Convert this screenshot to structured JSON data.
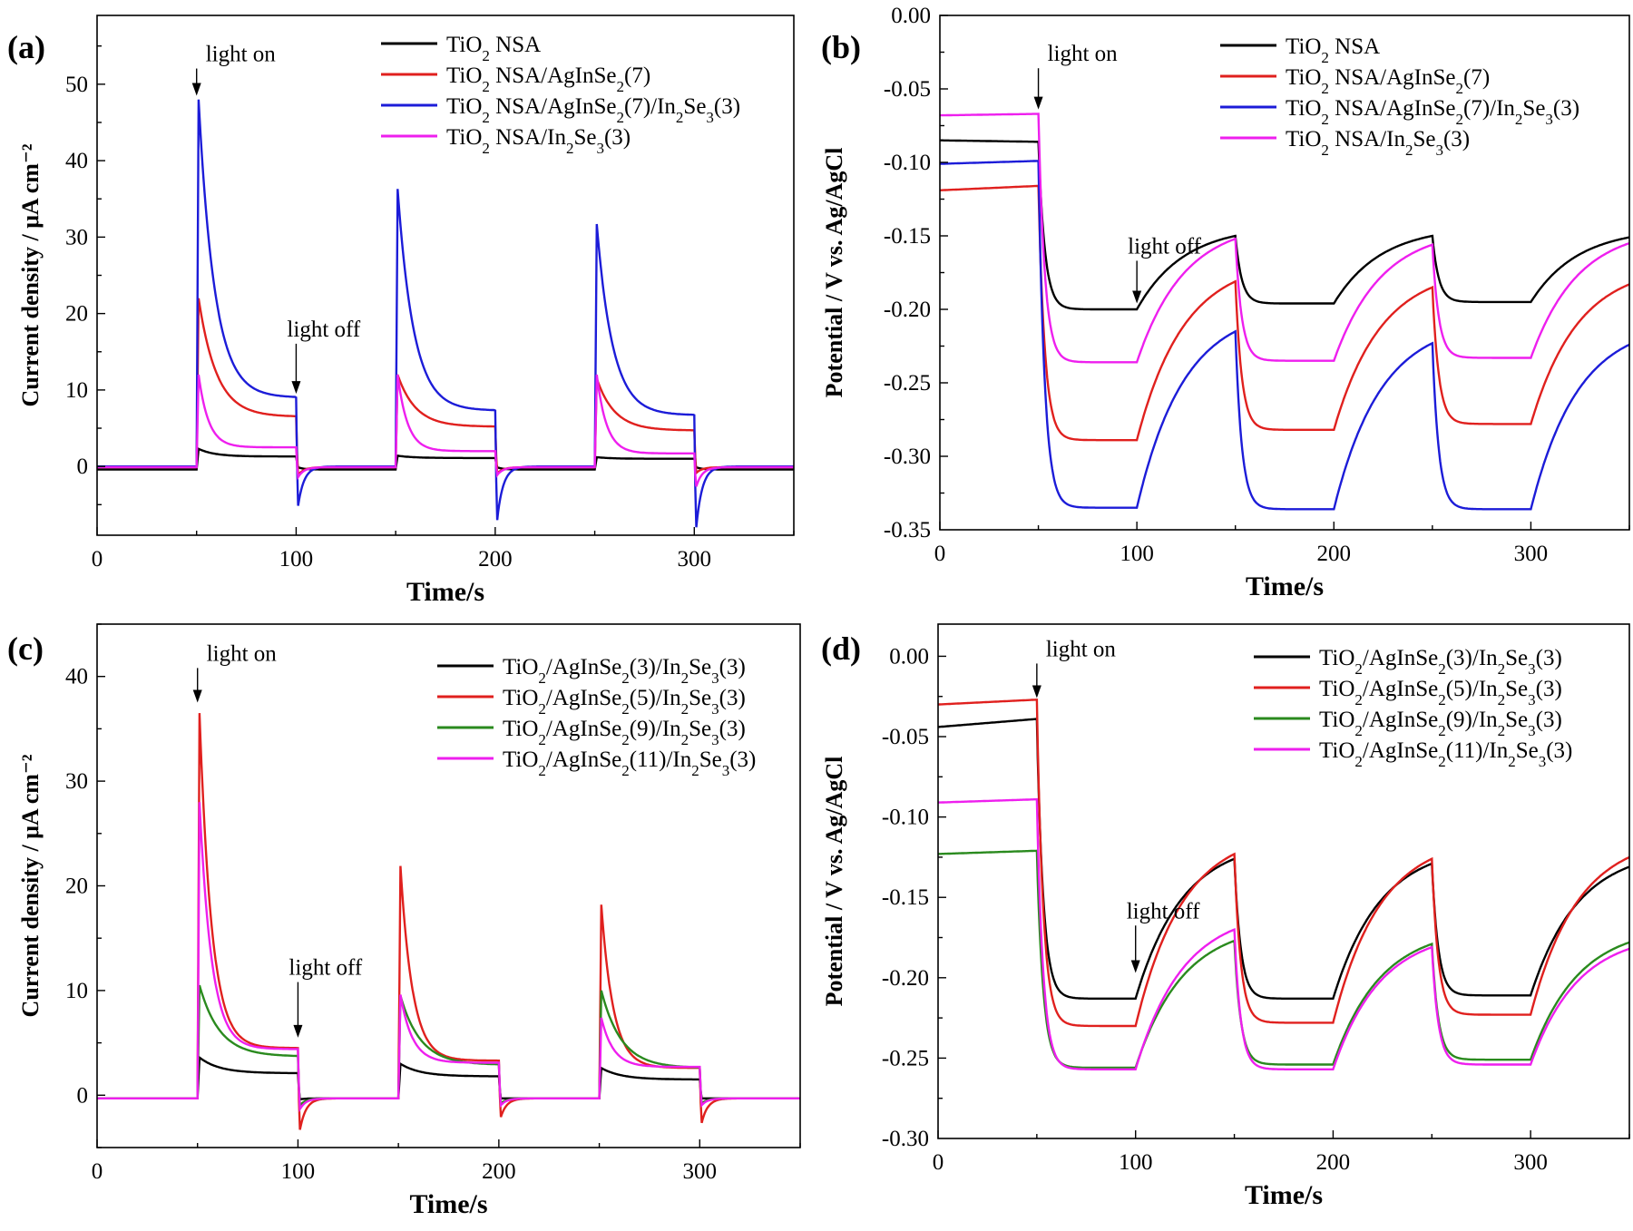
{
  "figure": {
    "panels": [
      {
        "id": "a",
        "label": "(a)"
      },
      {
        "id": "b",
        "label": "(b)"
      },
      {
        "id": "c",
        "label": "(c)"
      },
      {
        "id": "d",
        "label": "(d)"
      }
    ]
  },
  "chart_data": [
    {
      "panel": "(a)",
      "type": "line",
      "xlabel": "Time/s",
      "ylabel": "Current density / μA cm⁻²",
      "xlim": [
        0,
        350
      ],
      "ylim": [
        -9,
        59
      ],
      "xticks": [
        0,
        100,
        200,
        300
      ],
      "yticks": [
        0,
        10,
        20,
        30,
        40,
        50
      ],
      "tick_format": 0,
      "legend": "top-right",
      "annotations": [
        {
          "text": "light on",
          "x": 50,
          "y_tip": 48.5,
          "y_text": 53
        },
        {
          "text": "light off",
          "x": 100,
          "y_tip": 9.5,
          "y_text": 17
        }
      ],
      "cycles": [
        [
          50,
          100
        ],
        [
          150,
          200
        ],
        [
          250,
          300
        ]
      ],
      "series": [
        {
          "name": "TiO2 NSA",
          "color": "#000000",
          "dark": -0.4,
          "peaks": [
            2.3,
            1.4,
            1.2
          ],
          "plateau": [
            1.3,
            1.1,
            1.0
          ],
          "tau": 8,
          "undershoot": [
            -0.1,
            -0.1,
            -0.1
          ]
        },
        {
          "name": "TiO2 NSA/AgInSe2(7)",
          "color": "#e0201e",
          "dark": -0.1,
          "peaks": [
            22,
            12,
            11.5
          ],
          "plateau": [
            6.5,
            5.2,
            4.7
          ],
          "tau": 9,
          "undershoot": [
            -1.2,
            -1.0,
            -0.9
          ]
        },
        {
          "name": "TiO2 NSA/AgInSe2(7)/In2Se3(3)",
          "color": "#1c1cd8",
          "dark": 0.0,
          "peaks": [
            48,
            36.3,
            31.7
          ],
          "plateau": [
            9.0,
            7.3,
            6.7
          ],
          "tau": 8,
          "undershoot": [
            -5.5,
            -7.5,
            -8.5
          ]
        },
        {
          "name": "TiO2 NSA/In2Se3(3)",
          "color": "#ee1fee",
          "dark": -0.1,
          "peaks": [
            12,
            12,
            12
          ],
          "plateau": [
            2.5,
            2.0,
            1.7
          ],
          "tau": 5,
          "undershoot": [
            -1.5,
            -1.2,
            -2.8
          ]
        }
      ]
    },
    {
      "panel": "(b)",
      "type": "line",
      "xlabel": "Time/s",
      "ylabel": "Potential / V vs. Ag/AgCl",
      "xlim": [
        0,
        350
      ],
      "ylim": [
        -0.35,
        0.0
      ],
      "xticks": [
        0,
        100,
        200,
        300
      ],
      "yticks": [
        0.0,
        -0.05,
        -0.1,
        -0.15,
        -0.2,
        -0.25,
        -0.3,
        -0.35
      ],
      "tick_format": 2,
      "legend": "top-right",
      "annotations": [
        {
          "text": "light on",
          "x": 50,
          "y_tip": -0.064,
          "y_text": -0.031
        },
        {
          "text": "light off",
          "x": 100,
          "y_tip": -0.196,
          "y_text": -0.162
        }
      ],
      "cycles": [
        [
          50,
          100
        ],
        [
          150,
          200
        ],
        [
          250,
          300
        ]
      ],
      "series": [
        {
          "name": "TiO2 NSA",
          "color": "#000000",
          "v0": [
            -0.085,
            -0.086
          ],
          "light": [
            -0.2,
            -0.196,
            -0.195
          ],
          "off_end": [
            -0.15,
            -0.15,
            -0.151
          ]
        },
        {
          "name": "TiO2 NSA/AgInSe2(7)",
          "color": "#e0201e",
          "v0": [
            -0.119,
            -0.116
          ],
          "light": [
            -0.289,
            -0.282,
            -0.278
          ],
          "off_end": [
            -0.181,
            -0.185,
            -0.183
          ]
        },
        {
          "name": "TiO2 NSA/AgInSe2(7)/In2Se3(3)",
          "color": "#1c1cd8",
          "v0": [
            -0.101,
            -0.099
          ],
          "light": [
            -0.335,
            -0.336,
            -0.336
          ],
          "off_end": [
            -0.215,
            -0.223,
            -0.224
          ]
        },
        {
          "name": "TiO2 NSA/In2Se3(3)",
          "color": "#ee1fee",
          "v0": [
            -0.068,
            -0.067
          ],
          "light": [
            -0.236,
            -0.235,
            -0.233
          ],
          "off_end": [
            -0.152,
            -0.156,
            -0.155
          ]
        }
      ]
    },
    {
      "panel": "(c)",
      "type": "line",
      "xlabel": "Time/s",
      "ylabel": "Current density / μA cm⁻²",
      "xlim": [
        0,
        350
      ],
      "ylim": [
        -5,
        45
      ],
      "xticks": [
        0,
        100,
        200,
        300
      ],
      "yticks": [
        0,
        10,
        20,
        30,
        40
      ],
      "tick_format": 0,
      "legend": "top-right",
      "annotations": [
        {
          "text": "light on",
          "x": 50,
          "y_tip": 37.5,
          "y_text": 41.5
        },
        {
          "text": "light off",
          "x": 100,
          "y_tip": 5.5,
          "y_text": 11.5
        }
      ],
      "cycles": [
        [
          50,
          100
        ],
        [
          150,
          200
        ],
        [
          250,
          300
        ]
      ],
      "series": [
        {
          "name": "TiO2/AgInSe2(3)/In2Se3(3)",
          "color": "#000000",
          "dark": -0.3,
          "peaks": [
            3.6,
            3.0,
            2.6
          ],
          "plateau": [
            2.1,
            1.8,
            1.5
          ],
          "tau": 10,
          "undershoot": [
            -0.4,
            -0.3,
            -0.3
          ]
        },
        {
          "name": "TiO2/AgInSe2(5)/In2Se3(3)",
          "color": "#e0201e",
          "dark": -0.3,
          "peaks": [
            36.5,
            21.9,
            18.2
          ],
          "plateau": [
            4.5,
            3.3,
            2.6
          ],
          "tau": 6,
          "undershoot": [
            -3.5,
            -2.2,
            -2.8
          ]
        },
        {
          "name": "TiO2/AgInSe2(9)/In2Se3(3)",
          "color": "#2a8a1e",
          "dark": -0.3,
          "peaks": [
            10.5,
            9.5,
            10.0
          ],
          "plateau": [
            3.7,
            2.9,
            2.6
          ],
          "tau": 10,
          "undershoot": [
            -1.0,
            -0.8,
            -0.8
          ]
        },
        {
          "name": "TiO2/AgInSe2(11)/In2Se3(3)",
          "color": "#ee1fee",
          "dark": -0.3,
          "peaks": [
            28,
            9.6,
            7.4
          ],
          "plateau": [
            4.4,
            3.1,
            2.7
          ],
          "tau": 6,
          "undershoot": [
            -1.4,
            -1.0,
            -1.0
          ]
        }
      ]
    },
    {
      "panel": "(d)",
      "type": "line",
      "xlabel": "Time/s",
      "ylabel": "Potential / V vs. Ag/AgCl",
      "xlim": [
        0,
        350
      ],
      "ylim": [
        -0.3,
        0.02
      ],
      "xticks": [
        0,
        100,
        200,
        300
      ],
      "yticks": [
        0.0,
        -0.05,
        -0.1,
        -0.15,
        -0.2,
        -0.25,
        -0.3
      ],
      "tick_format": 2,
      "legend": "top-right",
      "annotations": [
        {
          "text": "light on",
          "x": 50,
          "y_tip": -0.026,
          "y_text": 0.0
        },
        {
          "text": "light off",
          "x": 100,
          "y_tip": -0.197,
          "y_text": -0.163
        }
      ],
      "cycles": [
        [
          50,
          100
        ],
        [
          150,
          200
        ],
        [
          250,
          300
        ]
      ],
      "series": [
        {
          "name": "TiO2/AgInSe2(3)/In2Se3(3)",
          "color": "#000000",
          "v0": [
            -0.044,
            -0.039
          ],
          "light": [
            -0.213,
            -0.213,
            -0.211
          ],
          "off_end": [
            -0.126,
            -0.129,
            -0.131
          ]
        },
        {
          "name": "TiO2/AgInSe2(5)/In2Se3(3)",
          "color": "#e0201e",
          "v0": [
            -0.03,
            -0.027
          ],
          "light": [
            -0.23,
            -0.228,
            -0.223
          ],
          "off_end": [
            -0.123,
            -0.126,
            -0.125
          ]
        },
        {
          "name": "TiO2/AgInSe2(9)/In2Se3(3)",
          "color": "#2a8a1e",
          "v0": [
            -0.123,
            -0.121
          ],
          "light": [
            -0.256,
            -0.254,
            -0.251
          ],
          "off_end": [
            -0.177,
            -0.179,
            -0.178
          ]
        },
        {
          "name": "TiO2/AgInSe2(11)/In2Se3(3)",
          "color": "#ee1fee",
          "v0": [
            -0.091,
            -0.089
          ],
          "light": [
            -0.257,
            -0.257,
            -0.254
          ],
          "off_end": [
            -0.17,
            -0.181,
            -0.182
          ]
        }
      ]
    }
  ]
}
